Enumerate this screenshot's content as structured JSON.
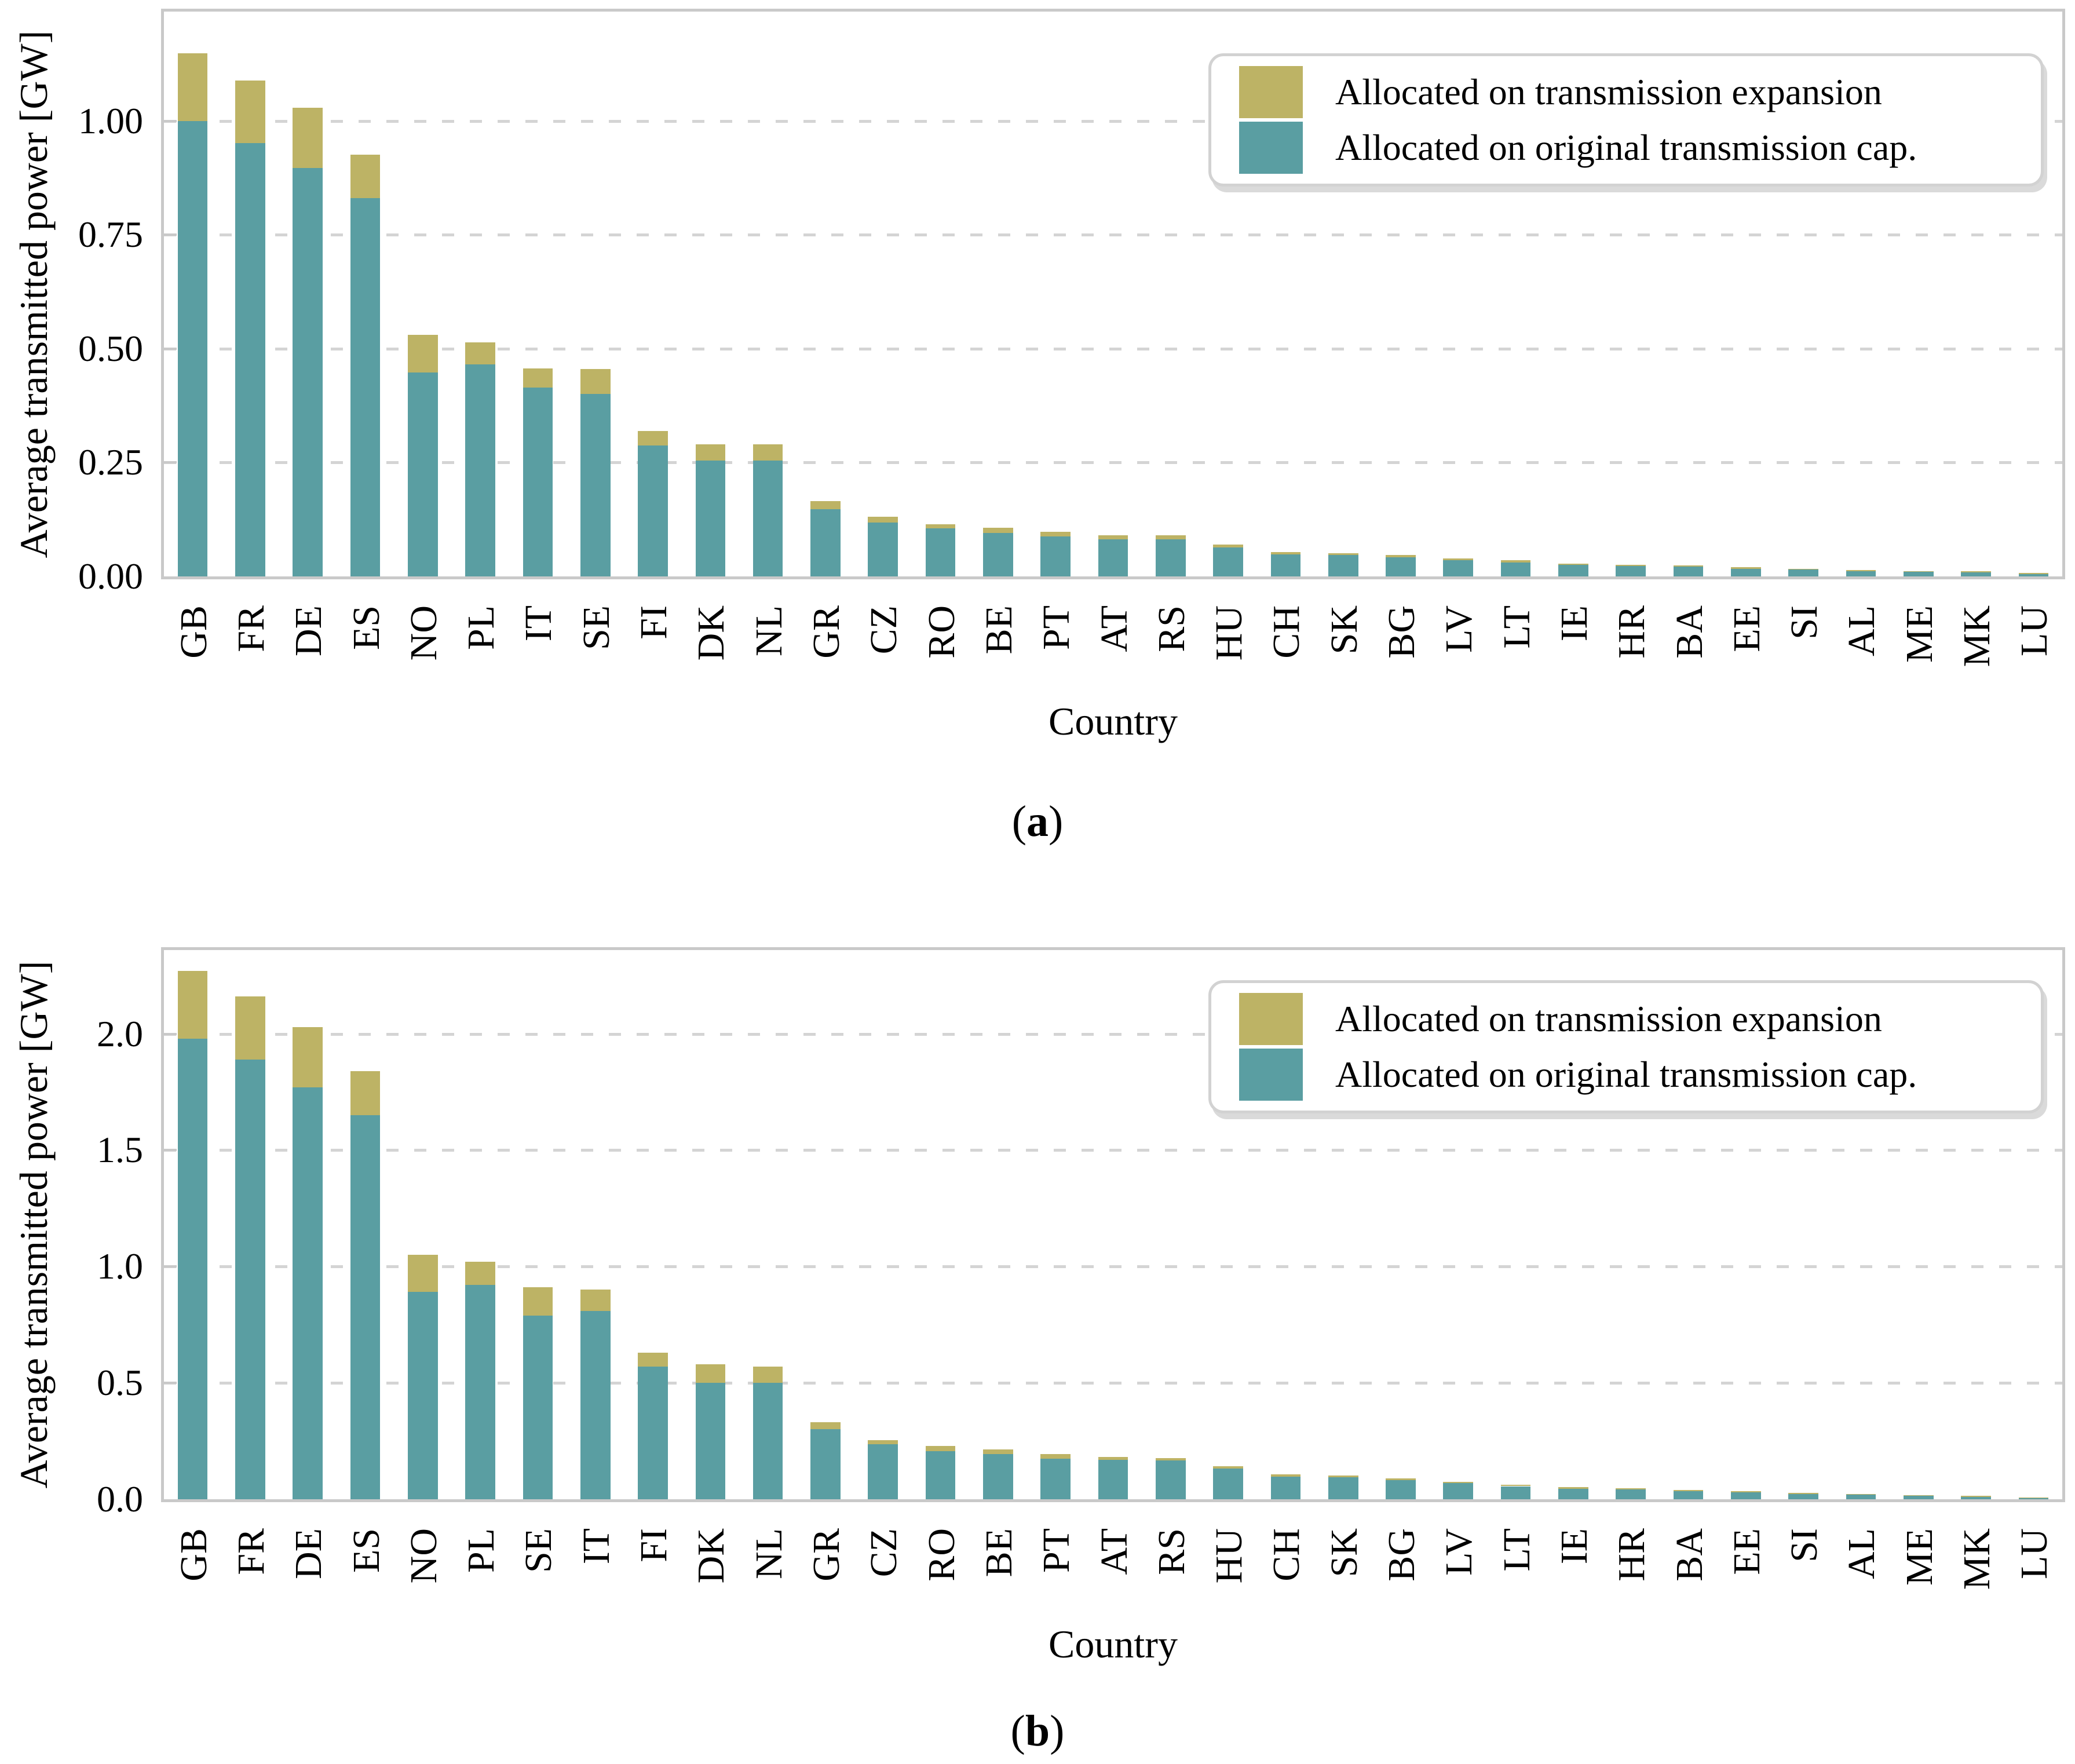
{
  "figure": {
    "ylabel": "Average transmitted power [GW]",
    "xlabel": "Country",
    "captions": {
      "open": "(",
      "close": ")",
      "a": "a",
      "b": "b"
    }
  },
  "colors": {
    "expansion": "#bdb365",
    "original": "#5a9ea2",
    "grid": "#d4d4d4",
    "spine": "#c9c9c9"
  },
  "legend": {
    "entries": [
      {
        "label": "Allocated on transmission expansion",
        "color": "#bdb365"
      },
      {
        "label": "Allocated on original transmission cap.",
        "color": "#5a9ea2"
      }
    ]
  },
  "chart_data": [
    {
      "panel": "a",
      "type": "bar",
      "stacked": true,
      "title": "",
      "xlabel": "Country",
      "ylabel": "Average transmitted power [GW]",
      "ylim": [
        0,
        1.24
      ],
      "grid": "horizontal-dashed",
      "legend_position": "upper right",
      "categories": [
        "GB",
        "FR",
        "DE",
        "ES",
        "NO",
        "PL",
        "IT",
        "SE",
        "FI",
        "DK",
        "NL",
        "GR",
        "CZ",
        "RO",
        "BE",
        "PT",
        "AT",
        "RS",
        "HU",
        "CH",
        "SK",
        "BG",
        "LV",
        "LT",
        "IE",
        "HR",
        "BA",
        "EE",
        "SI",
        "AL",
        "ME",
        "MK",
        "LU"
      ],
      "ytick_values": [
        0,
        0.25,
        0.5,
        0.75,
        1.0
      ],
      "ytick_labels": [
        "0.00",
        "0.25",
        "0.50",
        "0.75",
        "1.00"
      ],
      "series": [
        {
          "name": "Allocated on original transmission cap.",
          "color": "#5a9ea2",
          "values": [
            1.0,
            0.951,
            0.897,
            0.831,
            0.448,
            0.465,
            0.415,
            0.401,
            0.288,
            0.254,
            0.254,
            0.148,
            0.118,
            0.105,
            0.095,
            0.088,
            0.082,
            0.081,
            0.064,
            0.048,
            0.047,
            0.042,
            0.036,
            0.031,
            0.025,
            0.023,
            0.021,
            0.017,
            0.015,
            0.012,
            0.01,
            0.009,
            0.005
          ]
        },
        {
          "name": "Allocated on transmission expansion",
          "color": "#bdb365",
          "values": [
            0.148,
            0.138,
            0.132,
            0.095,
            0.082,
            0.049,
            0.041,
            0.054,
            0.031,
            0.036,
            0.036,
            0.017,
            0.013,
            0.01,
            0.012,
            0.01,
            0.008,
            0.009,
            0.006,
            0.005,
            0.004,
            0.005,
            0.004,
            0.004,
            0.003,
            0.003,
            0.003,
            0.003,
            0.002,
            0.002,
            0.002,
            0.002,
            0.002
          ]
        }
      ]
    },
    {
      "panel": "b",
      "type": "bar",
      "stacked": true,
      "title": "",
      "xlabel": "Country",
      "ylabel": "Average transmitted power [GW]",
      "ylim": [
        0,
        2.36
      ],
      "grid": "horizontal-dashed",
      "legend_position": "upper right",
      "categories": [
        "GB",
        "FR",
        "DE",
        "ES",
        "NO",
        "PL",
        "SE",
        "IT",
        "FI",
        "DK",
        "NL",
        "GR",
        "CZ",
        "RO",
        "BE",
        "PT",
        "AT",
        "RS",
        "HU",
        "CH",
        "SK",
        "BG",
        "LV",
        "LT",
        "IE",
        "HR",
        "BA",
        "EE",
        "SI",
        "AL",
        "ME",
        "MK",
        "LU"
      ],
      "ytick_values": [
        0,
        0.5,
        1.0,
        1.5,
        2.0
      ],
      "ytick_labels": [
        "0.0",
        "0.5",
        "1.0",
        "1.5",
        "2.0"
      ],
      "series": [
        {
          "name": "Allocated on original transmission cap.",
          "color": "#5a9ea2",
          "values": [
            1.98,
            1.89,
            1.77,
            1.65,
            0.89,
            0.92,
            0.79,
            0.81,
            0.57,
            0.5,
            0.5,
            0.3,
            0.236,
            0.207,
            0.193,
            0.175,
            0.17,
            0.166,
            0.131,
            0.098,
            0.095,
            0.082,
            0.069,
            0.056,
            0.046,
            0.042,
            0.035,
            0.029,
            0.023,
            0.02,
            0.014,
            0.01,
            0.004
          ]
        },
        {
          "name": "Allocated on transmission expansion",
          "color": "#bdb365",
          "values": [
            0.29,
            0.27,
            0.26,
            0.19,
            0.16,
            0.1,
            0.12,
            0.09,
            0.06,
            0.08,
            0.07,
            0.03,
            0.019,
            0.021,
            0.021,
            0.018,
            0.012,
            0.011,
            0.012,
            0.008,
            0.007,
            0.008,
            0.006,
            0.007,
            0.006,
            0.006,
            0.005,
            0.006,
            0.004,
            0.003,
            0.003,
            0.004,
            0.004
          ]
        }
      ]
    }
  ]
}
